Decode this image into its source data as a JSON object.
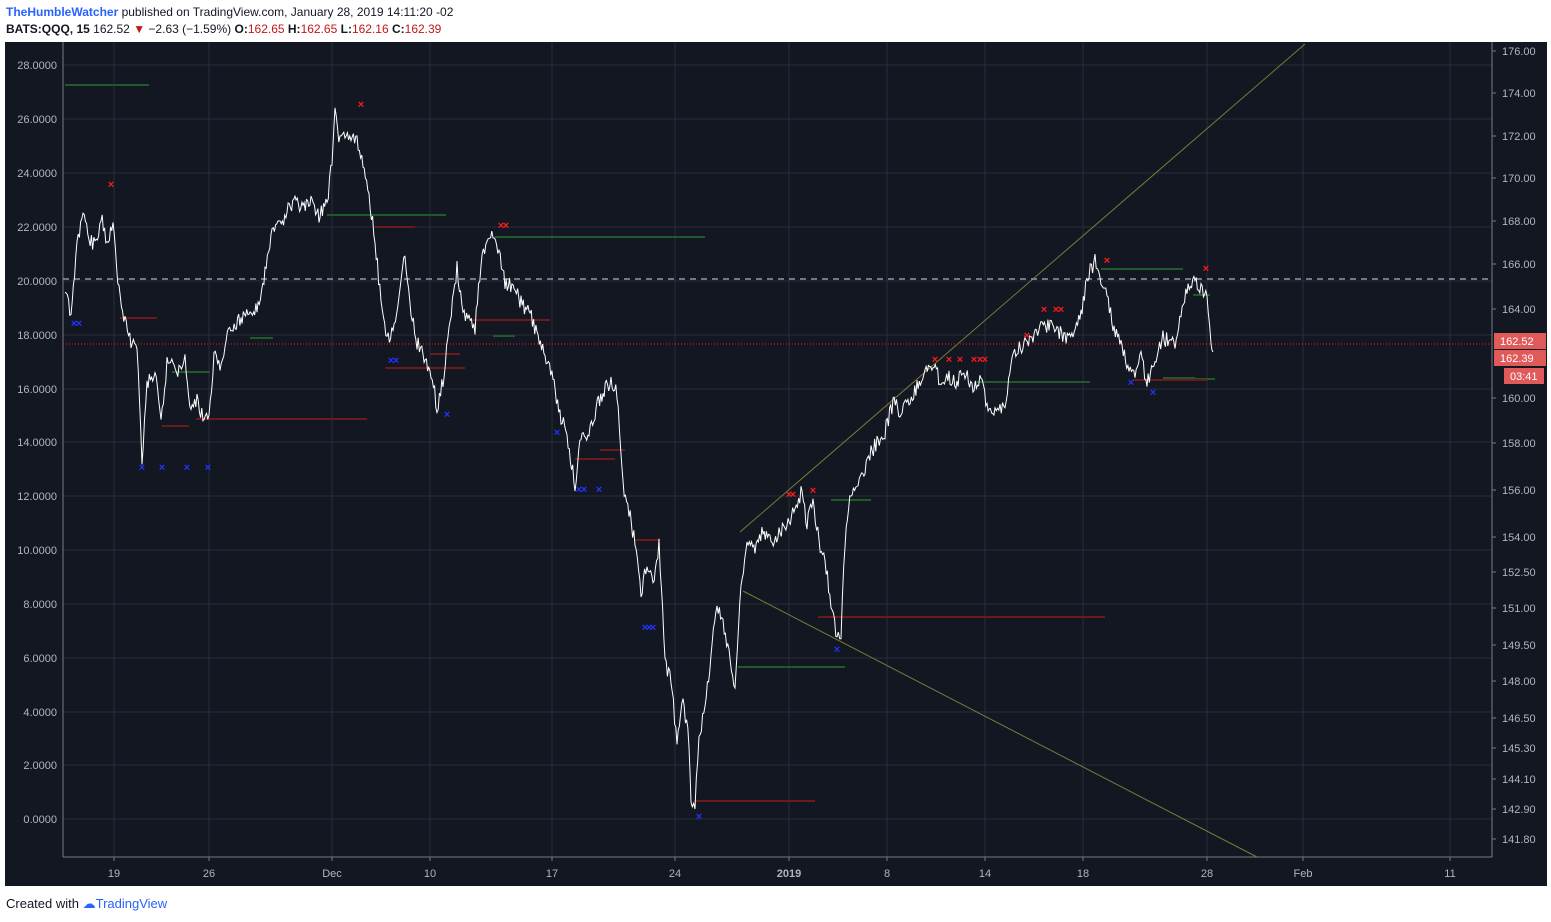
{
  "header": {
    "author": "TheHumbleWatcher",
    "published": " published on TradingView.com, January 28, 2019 14:11:20 -02",
    "symbol": "BATS:QQQ, 15",
    "price": "162.52",
    "change_arrow": "▼",
    "change": "−2.63 (−1.59%)",
    "o_label": "O:",
    "o": "162.65",
    "h_label": "H:",
    "h": "162.65",
    "l_label": "L:",
    "l": "162.16",
    "c_label": "C:",
    "c": "162.39"
  },
  "footer": {
    "created": "Created with",
    "brand": "TradingView"
  },
  "colors": {
    "background": "#131722",
    "grid": "#2a2e39",
    "price_line": "#ffffff",
    "buy_marker": "#2233ff",
    "sell_marker": "#ff1a1a",
    "support": "#1e5a2a",
    "resistance": "#6b1a1a",
    "trendline": "#7a7a3a",
    "price_label_bg": "#e05a5a"
  },
  "axes": {
    "left_ticks": [
      "28.0000",
      "26.0000",
      "24.0000",
      "22.0000",
      "20.0000",
      "18.0000",
      "16.0000",
      "14.0000",
      "12.0000",
      "10.0000",
      "8.0000",
      "6.0000",
      "4.0000",
      "2.0000",
      "0.0000"
    ],
    "right_ticks": [
      "176.00",
      "174.00",
      "172.00",
      "170.00",
      "168.00",
      "166.00",
      "164.00",
      "160.00",
      "158.00",
      "156.00",
      "154.00",
      "152.50",
      "151.00",
      "149.50",
      "148.00",
      "146.50",
      "145.30",
      "144.10",
      "142.90",
      "141.80"
    ],
    "x_ticks": [
      "19",
      "26",
      "Dec",
      "10",
      "17",
      "24",
      "2019",
      "8",
      "14",
      "18",
      "28",
      "Feb",
      "11"
    ],
    "price_labels": [
      "162.52",
      "162.39"
    ],
    "countdown": "03:41"
  }
}
